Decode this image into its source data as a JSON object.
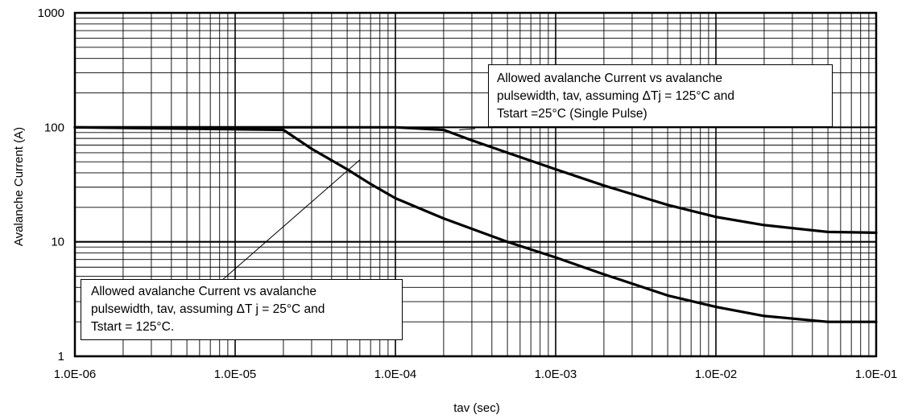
{
  "chart_data": {
    "type": "line",
    "xlabel": "tav (sec)",
    "ylabel": "Avalanche Current (A)",
    "xscale": "log",
    "yscale": "log",
    "xlim": [
      1e-06,
      0.1
    ],
    "ylim": [
      1,
      1000
    ],
    "grid": true,
    "x_ticks": [
      "1.0E-06",
      "1.0E-05",
      "1.0E-04",
      "1.0E-03",
      "1.0E-02",
      "1.0E-01"
    ],
    "y_ticks": [
      "1",
      "10",
      "100",
      "1000"
    ],
    "series": [
      {
        "x": [
          1e-06,
          2e-05,
          3e-05,
          5e-05,
          7e-05,
          0.0001,
          0.0002,
          0.0005,
          0.001,
          0.002,
          0.005,
          0.01,
          0.02,
          0.05,
          0.1
        ],
        "y": [
          100,
          95,
          65,
          43,
          32,
          24,
          16,
          10,
          7.3,
          5.2,
          3.4,
          2.7,
          2.25,
          2.0,
          2.0
        ]
      },
      {
        "x": [
          1e-06,
          0.0001,
          0.0002,
          0.0003,
          0.0005,
          0.001,
          0.002,
          0.005,
          0.01,
          0.02,
          0.05,
          0.1
        ],
        "y": [
          100,
          100,
          95,
          77,
          60,
          43,
          31,
          21,
          16.5,
          14,
          12.2,
          12
        ]
      }
    ],
    "annotations": [
      {
        "lines": [
          "Allowed avalanche Current vs avalanche",
          "pulsewidth, tav, assuming ΔTj = 125°C and",
          "Tstart =25°C (Single Pulse)"
        ],
        "target": [
          0.00025,
          95
        ]
      },
      {
        "lines": [
          "Allowed avalanche Current vs avalanche",
          "pulsewidth, tav, assuming ΔT j = 25°C and",
          "Tstart = 125°C."
        ],
        "target": [
          6e-05,
          52
        ]
      }
    ]
  }
}
